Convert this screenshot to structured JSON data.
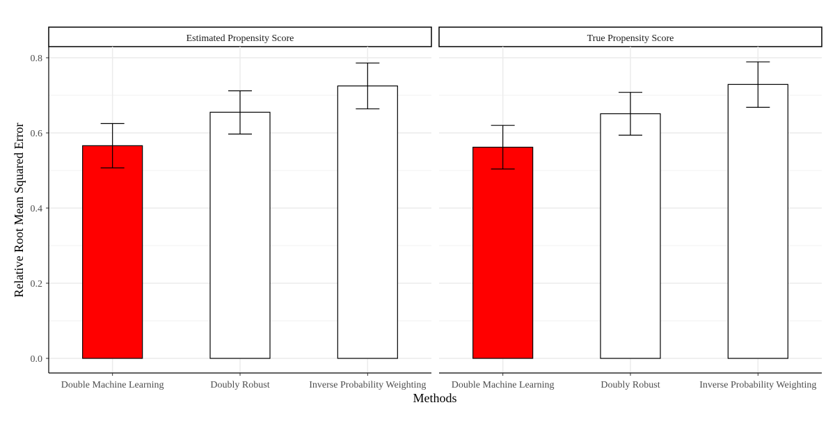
{
  "chart_data": {
    "type": "bar",
    "xlabel": "Methods",
    "ylabel": "Relative Root Mean Squared Error",
    "ylim": [
      -0.04,
      0.83
    ],
    "yticks": [
      "0.0",
      "0.2",
      "0.4",
      "0.6",
      "0.8"
    ],
    "ytick_values": [
      0.0,
      0.2,
      0.4,
      0.6,
      0.8
    ],
    "categories": [
      "Double Machine Learning",
      "Doubly Robust",
      "Inverse Probability Weighting"
    ],
    "grid": true,
    "highlight_color": "#ff0000",
    "bar_color": "#ffffff",
    "panels": [
      {
        "title": "Estimated Propensity Score",
        "values": [
          0.566,
          0.655,
          0.725
        ],
        "error_low": [
          0.507,
          0.597,
          0.664
        ],
        "error_high": [
          0.625,
          0.712,
          0.786
        ],
        "highlight": [
          true,
          false,
          false
        ]
      },
      {
        "title": "True Propensity Score",
        "values": [
          0.562,
          0.651,
          0.729
        ],
        "error_low": [
          0.504,
          0.594,
          0.668
        ],
        "error_high": [
          0.62,
          0.708,
          0.789
        ],
        "highlight": [
          true,
          false,
          false
        ]
      }
    ]
  }
}
